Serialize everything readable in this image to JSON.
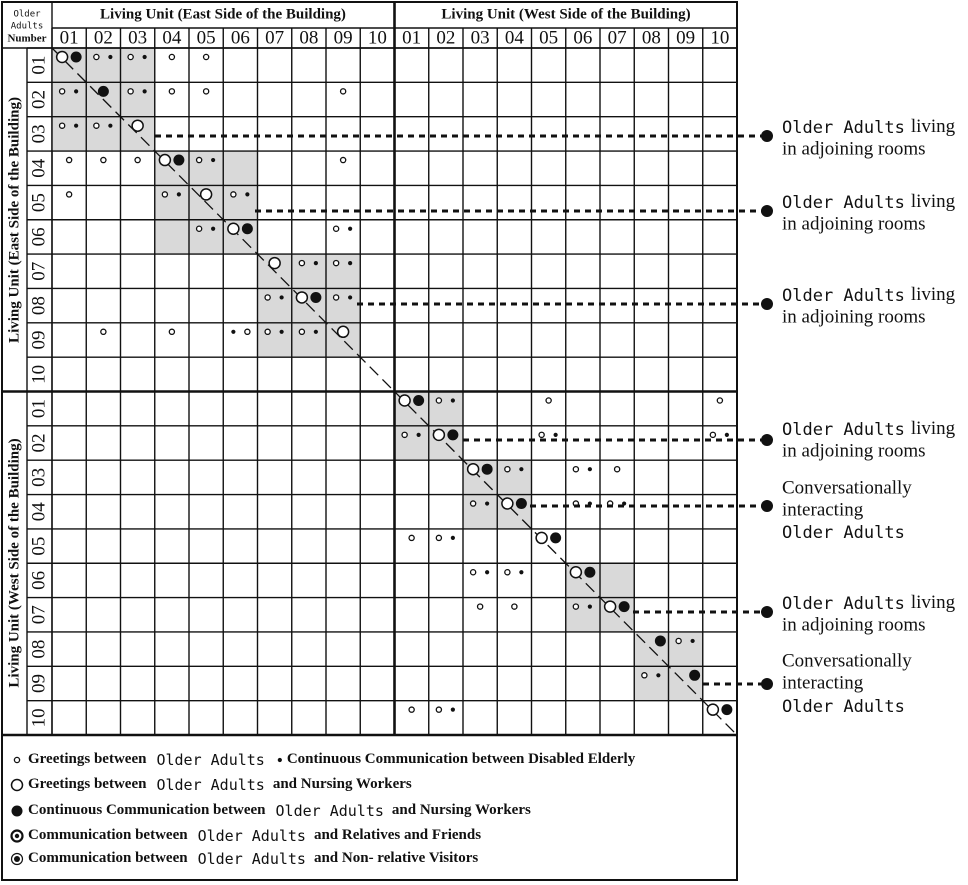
{
  "header": {
    "corner": [
      "Older",
      "Adults",
      "Number"
    ],
    "east_title": "Living Unit (East Side of the Building)",
    "west_title": "Living Unit (West Side of the Building)",
    "numbers": [
      "01",
      "02",
      "03",
      "04",
      "05",
      "06",
      "07",
      "08",
      "09",
      "10"
    ]
  },
  "annotations": [
    {
      "subject": "Older Adults",
      "predicate": "living",
      "line2": "in adjoining rooms"
    },
    {
      "subject": "Older Adults",
      "predicate": "living",
      "line2": "in adjoining rooms"
    },
    {
      "subject": "Older Adults",
      "predicate": "living",
      "line2": "in adjoining rooms"
    },
    {
      "subject": "Older Adults",
      "predicate": "living",
      "line2": "in adjoining rooms"
    },
    {
      "line1": "Conversationally",
      "line2": "interacting",
      "subject": "Older Adults"
    },
    {
      "subject": "Older Adults",
      "predicate": "living",
      "line2": "in adjoining rooms"
    },
    {
      "line1": "Conversationally",
      "line2": "interacting",
      "subject": "Older Adults"
    }
  ],
  "legend": [
    {
      "before": "Greetings between",
      "subject": "Older Adults",
      "after": "Continuous Communication between Disabled Elderly"
    },
    {
      "before": "Greetings between",
      "subject": "Older Adults",
      "after": "and Nursing Workers"
    },
    {
      "before": "Continuous Communication between",
      "subject": "Older Adults",
      "after": "and Nursing Workers"
    },
    {
      "before": "Communication between",
      "subject": "Older Adults",
      "after": "and Relatives and Friends"
    },
    {
      "before": "Communication between",
      "subject": "Older Adults",
      "after": "and Non- relative Visitors"
    }
  ]
}
